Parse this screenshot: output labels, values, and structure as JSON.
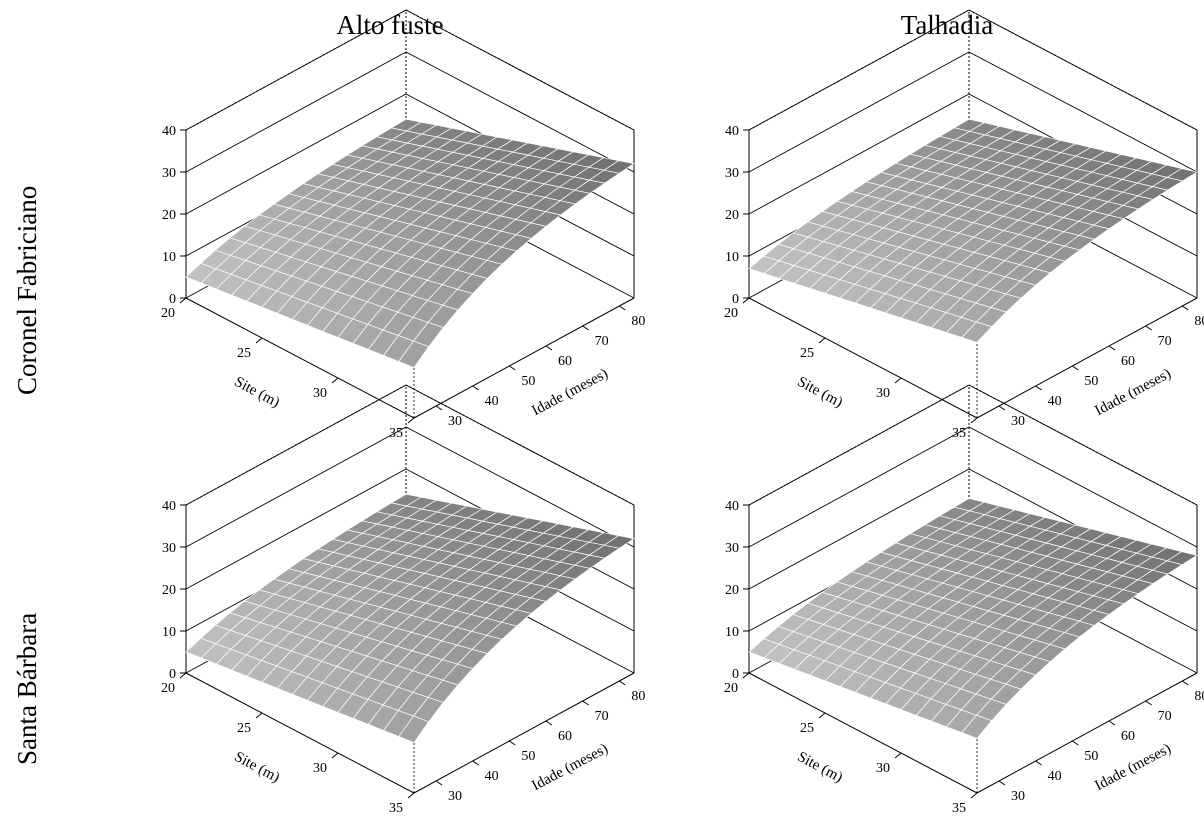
{
  "col_titles": [
    "Alto fuste",
    "Talhadia"
  ],
  "row_labels": [
    "Coronel Fabriciano",
    "Santa Bárbara"
  ],
  "chart_data": [
    {
      "type": "surface",
      "row": "Coronel Fabriciano",
      "col": "Alto fuste",
      "xlabel": "Site (m)",
      "ylabel": "Idade (meses)",
      "x_ticks": [
        20,
        25,
        30,
        35
      ],
      "y_ticks": [
        30,
        40,
        50,
        60,
        70,
        80
      ],
      "z_ticks": [
        0,
        10,
        20,
        30,
        40
      ],
      "xlim": [
        20,
        35
      ],
      "ylim": [
        24,
        84
      ],
      "zlim": [
        0,
        40
      ],
      "corners": {
        "site_min_age_min": 5,
        "site_min_age_max": 14,
        "site_max_age_min": 12,
        "site_max_age_max": 32
      },
      "grid_n": 15
    },
    {
      "type": "surface",
      "row": "Coronel Fabriciano",
      "col": "Talhadia",
      "xlabel": "Site (m)",
      "ylabel": "Idade (meses)",
      "x_ticks": [
        20,
        25,
        30,
        35
      ],
      "y_ticks": [
        30,
        40,
        50,
        60,
        70,
        80
      ],
      "z_ticks": [
        0,
        10,
        20,
        30,
        40
      ],
      "xlim": [
        20,
        35
      ],
      "ylim": [
        24,
        84
      ],
      "zlim": [
        0,
        40
      ],
      "corners": {
        "site_min_age_min": 7,
        "site_min_age_max": 14,
        "site_max_age_min": 18,
        "site_max_age_max": 30
      },
      "grid_n": 15
    },
    {
      "type": "surface",
      "row": "Santa Bárbara",
      "col": "Alto fuste",
      "xlabel": "Site (m)",
      "ylabel": "Idade (meses)",
      "x_ticks": [
        20,
        25,
        30,
        35
      ],
      "y_ticks": [
        30,
        40,
        50,
        60,
        70,
        80
      ],
      "z_ticks": [
        0,
        10,
        20,
        30,
        40
      ],
      "xlim": [
        20,
        35
      ],
      "ylim": [
        24,
        84
      ],
      "zlim": [
        0,
        40
      ],
      "corners": {
        "site_min_age_min": 5,
        "site_min_age_max": 14,
        "site_max_age_min": 12,
        "site_max_age_max": 32
      },
      "grid_n": 15
    },
    {
      "type": "surface",
      "row": "Santa Bárbara",
      "col": "Talhadia",
      "xlabel": "Site (m)",
      "ylabel": "Idade (meses)",
      "x_ticks": [
        20,
        25,
        30,
        35
      ],
      "y_ticks": [
        30,
        40,
        50,
        60,
        70,
        80
      ],
      "z_ticks": [
        0,
        10,
        20,
        30,
        40
      ],
      "xlim": [
        20,
        35
      ],
      "ylim": [
        24,
        84
      ],
      "zlim": [
        0,
        40
      ],
      "corners": {
        "site_min_age_min": 5,
        "site_min_age_max": 13,
        "site_max_age_min": 13,
        "site_max_age_max": 28
      },
      "grid_n": 15
    }
  ]
}
